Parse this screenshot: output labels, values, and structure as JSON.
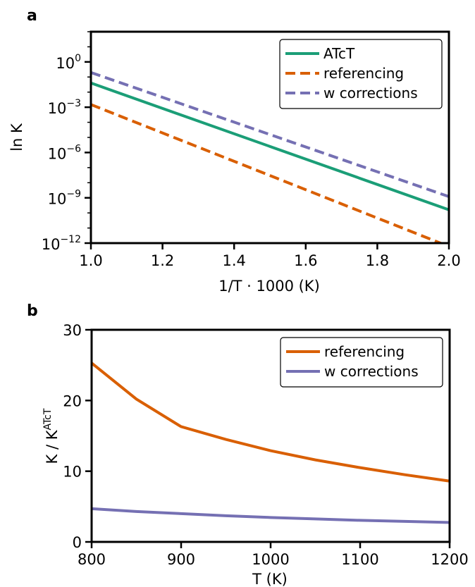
{
  "chart_data": [
    {
      "panel": "a",
      "type": "line",
      "xlabel": "1/T · 1000 (K)",
      "ylabel": "ln K",
      "xlim": [
        1.0,
        2.0
      ],
      "ylim": [
        1e-12,
        100.0
      ],
      "yscale": "log",
      "xticks": [
        "1.0",
        "1.2",
        "1.4",
        "1.6",
        "1.8",
        "2.0"
      ],
      "xtick_values": [
        1.0,
        1.2,
        1.4,
        1.6,
        1.8,
        2.0
      ],
      "yticks": [
        {
          "value": 1,
          "base": "10",
          "exp": "0"
        },
        {
          "value": 0.001,
          "base": "10",
          "exp": "−3"
        },
        {
          "value": 1e-06,
          "base": "10",
          "exp": "−6"
        },
        {
          "value": 1e-09,
          "base": "10",
          "exp": "−9"
        },
        {
          "value": 1e-12,
          "base": "10",
          "exp": "−12"
        }
      ],
      "legend_position": "top-right",
      "series": [
        {
          "name": "ATcT",
          "color": "#1b9e77",
          "style": "solid",
          "x": [
            1.0,
            2.0
          ],
          "y": [
            0.04,
            1.6e-10
          ]
        },
        {
          "name": "referencing",
          "color": "#d95f02",
          "style": "dashed",
          "x": [
            1.0,
            2.0
          ],
          "y": [
            0.0015,
            6e-13
          ]
        },
        {
          "name": "w corrections",
          "color": "#7570b3",
          "style": "dashed",
          "x": [
            1.0,
            2.0
          ],
          "y": [
            0.2,
            1.2e-09
          ]
        }
      ]
    },
    {
      "panel": "b",
      "type": "line",
      "xlabel": "T (K)",
      "ylabel_main": "K / K",
      "ylabel_sup": "ATcT",
      "xlim": [
        800,
        1200
      ],
      "ylim": [
        0,
        30
      ],
      "xticks": [
        "800",
        "900",
        "1000",
        "1100",
        "1200"
      ],
      "xtick_values": [
        800,
        900,
        1000,
        1100,
        1200
      ],
      "yticks": [
        "0",
        "10",
        "20",
        "30"
      ],
      "ytick_values": [
        0,
        10,
        20,
        30
      ],
      "legend_position": "top-right",
      "series": [
        {
          "name": "referencing",
          "color": "#d95f02",
          "style": "solid",
          "x": [
            800,
            850,
            900,
            950,
            1000,
            1050,
            1100,
            1150,
            1200
          ],
          "y": [
            25.3,
            20.2,
            16.3,
            14.5,
            12.9,
            11.6,
            10.5,
            9.5,
            8.6
          ]
        },
        {
          "name": "w corrections",
          "color": "#7570b3",
          "style": "solid",
          "x": [
            800,
            850,
            900,
            950,
            1000,
            1050,
            1100,
            1150,
            1200
          ],
          "y": [
            4.7,
            4.3,
            4.0,
            3.7,
            3.45,
            3.25,
            3.05,
            2.9,
            2.75
          ]
        }
      ]
    }
  ]
}
